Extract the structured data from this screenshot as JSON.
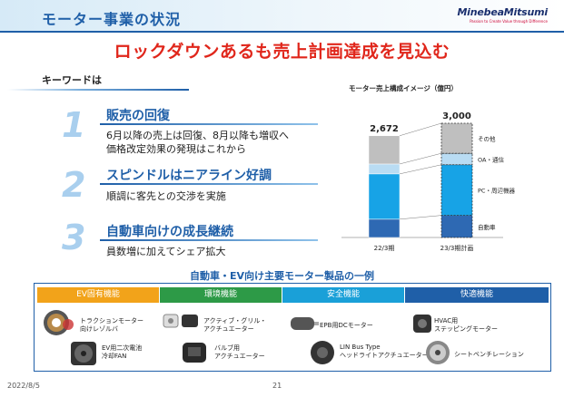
{
  "header": {
    "title": "モーター事業の状況",
    "logo": "MinebeaMitsumi",
    "logo_tagline": "Passion to Create Value through Difference"
  },
  "headline": "ロックダウンあるも売上計画達成を見込む",
  "keywords": {
    "title": "キーワードは",
    "items": [
      {
        "num": "1",
        "title": "販売の回復",
        "body": [
          "6月以降の売上は回復、8月以降も増収へ",
          "価格改定効果の発現はこれから"
        ]
      },
      {
        "num": "2",
        "title": "スピンドルはニアライン好調",
        "body": [
          "順調に客先との交渉を実施"
        ]
      },
      {
        "num": "3",
        "title": "自動車向けの成長継続",
        "body": [
          "員数増に加えてシェア拡大"
        ]
      }
    ]
  },
  "chart_data": {
    "type": "bar",
    "stacked": true,
    "title": "モーター売上構成イメージ（億円）",
    "categories": [
      "22/3期",
      "23/3期計画"
    ],
    "totals": [
      "2,672",
      "3,000"
    ],
    "totals_values": [
      2672,
      3000
    ],
    "series": [
      {
        "name": "自動車",
        "values": [
          480,
          580
        ],
        "color": "#2e69b3"
      },
      {
        "name": "PC・周辺機器",
        "values": [
          1190,
          1330
        ],
        "color": "#17a3e6"
      },
      {
        "name": "OA・通信",
        "values": [
          260,
          300
        ],
        "color": "#b9dcf3"
      },
      {
        "name": "その他",
        "values": [
          742,
          790
        ],
        "color": "#bfbfbf"
      }
    ],
    "ylim": [
      0,
      3000
    ]
  },
  "products": {
    "title": "自動車・EV向け主要モーター製品の一例",
    "categories": [
      {
        "label": "EV固有機能",
        "color": "#f2a31a"
      },
      {
        "label": "環境機能",
        "color": "#2d9a47"
      },
      {
        "label": "安全機能",
        "color": "#1aa0d8"
      },
      {
        "label": "快適機能",
        "color": "#1f5fa8"
      }
    ],
    "items": [
      {
        "line1": "トラクションモーター",
        "line2": "向けレゾルバ",
        "icon": "resolver-icon"
      },
      {
        "line1": "EV用二次電池",
        "line2": "冷却FAN",
        "icon": "fan-icon"
      },
      {
        "line1": "アクティブ・グリル・",
        "line2": "アクチュエーター",
        "icon": "grille-actuator-icon"
      },
      {
        "line1": "バルブ用",
        "line2": "アクチュエーター",
        "icon": "valve-actuator-icon"
      },
      {
        "line1": "EPB用DCモーター",
        "line2": "",
        "icon": "dc-motor-icon"
      },
      {
        "line1": "LIN Bus Type",
        "line2": "ヘッドライトアクチュエーター",
        "icon": "headlight-actuator-icon"
      },
      {
        "line1": "HVAC用",
        "line2": "ステッピングモーター",
        "icon": "stepping-motor-icon"
      },
      {
        "line1": "シートベンチレーション",
        "line2": "",
        "icon": "seat-fan-icon"
      }
    ]
  },
  "footer": {
    "date": "2022/8/5",
    "page": "21"
  }
}
